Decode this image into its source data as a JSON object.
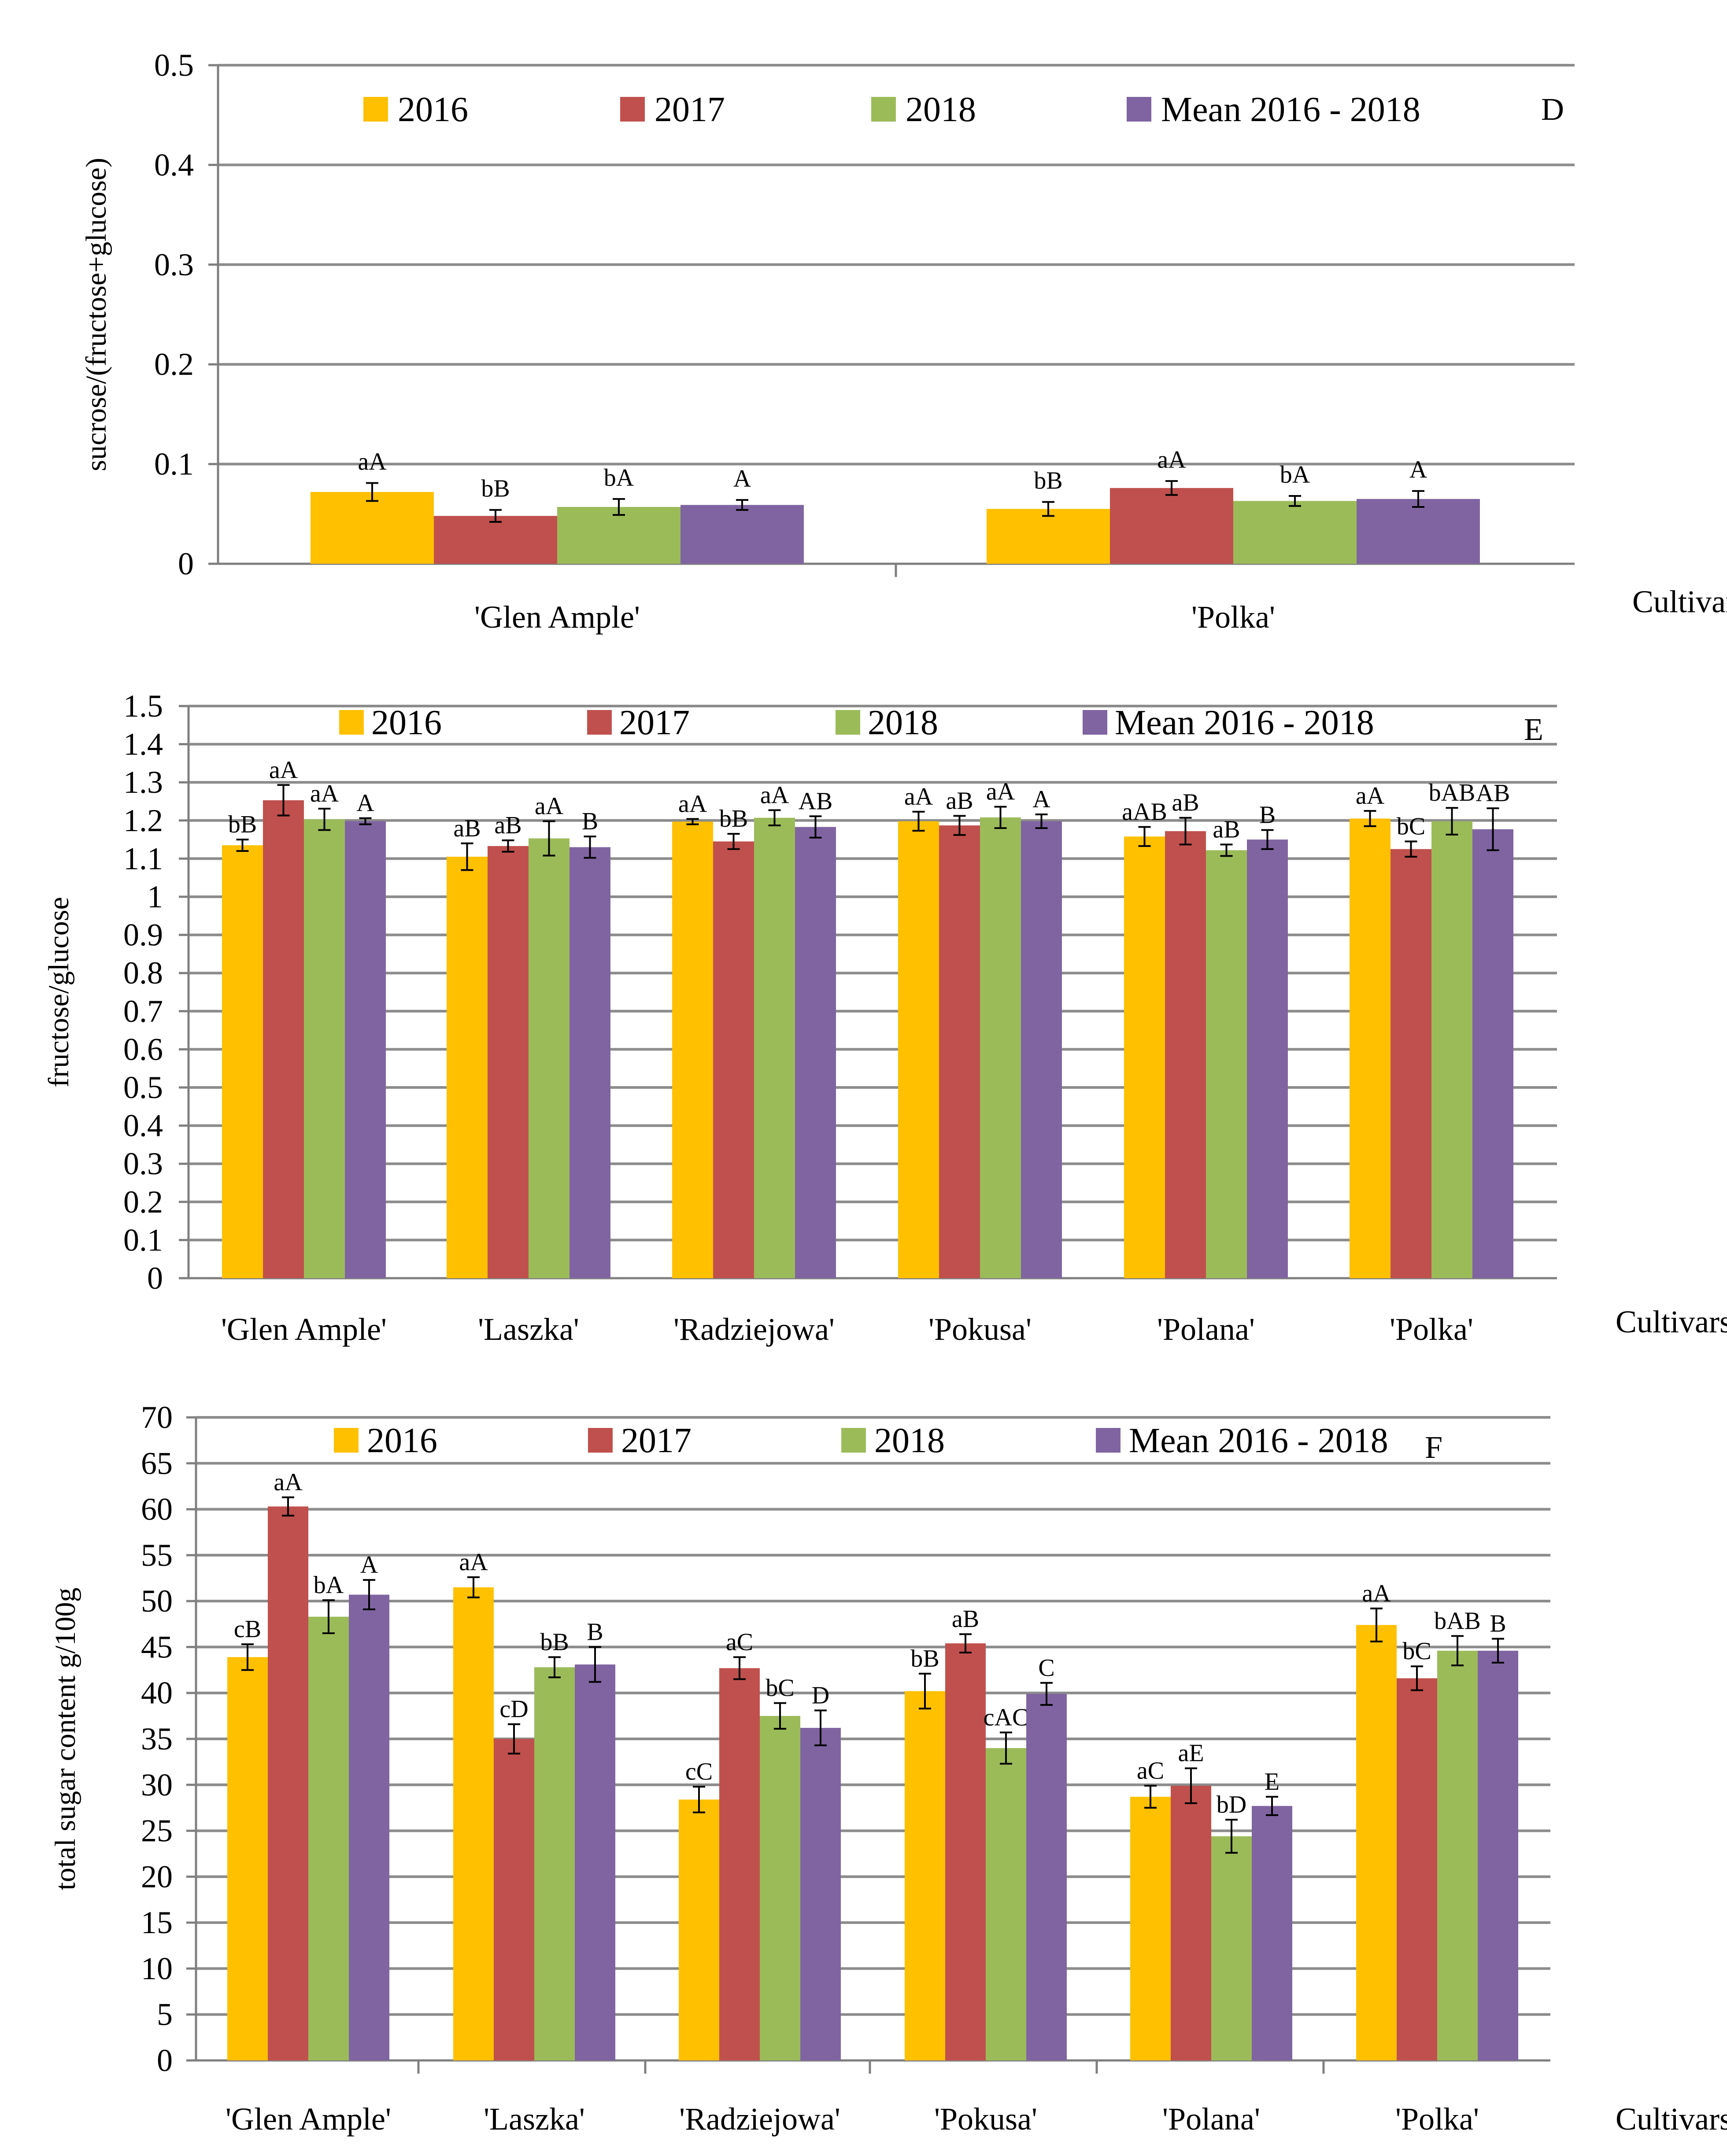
{
  "colors": {
    "2016": "#FFC000",
    "2017": "#C0504D",
    "2018": "#9BBB59",
    "Mean 2016 - 2018": "#8064A2"
  },
  "chart_data": [
    {
      "type": "bar",
      "panel": "D",
      "title": "",
      "xlabel": "Cultivars",
      "ylabel": "sucrose/(fructose+glucose)",
      "ylim": [
        0,
        0.5
      ],
      "yticks": [
        "0",
        "0.1",
        "0.2",
        "0.3",
        "0.4",
        "0.5"
      ],
      "grid": true,
      "legend_position": "top",
      "categories": [
        "'Glen Ample'",
        "'Polka'"
      ],
      "series": [
        {
          "name": "2016",
          "values": [
            0.072,
            0.055
          ],
          "errors": [
            0.009,
            0.007
          ],
          "labels": [
            "aA",
            "bB"
          ]
        },
        {
          "name": "2017",
          "values": [
            0.048,
            0.076
          ],
          "errors": [
            0.006,
            0.007
          ],
          "labels": [
            "bB",
            "aA"
          ]
        },
        {
          "name": "2018",
          "values": [
            0.057,
            0.063
          ],
          "errors": [
            0.008,
            0.005
          ],
          "labels": [
            "bA",
            "bA"
          ]
        },
        {
          "name": "Mean 2016 - 2018",
          "values": [
            0.059,
            0.065
          ],
          "errors": [
            0.005,
            0.008
          ],
          "labels": [
            "A",
            "A"
          ]
        }
      ]
    },
    {
      "type": "bar",
      "panel": "E",
      "title": "",
      "xlabel": "Cultivars",
      "ylabel": "fructose/glucose",
      "ylim": [
        0,
        1.5
      ],
      "yticks": [
        "0",
        "0.1",
        "0.2",
        "0.3",
        "0.4",
        "0.5",
        "0.6",
        "0.7",
        "0.8",
        "0.9",
        "1",
        "1.1",
        "1.2",
        "1.3",
        "1.4",
        "1.5"
      ],
      "grid": true,
      "legend_position": "top",
      "categories": [
        "'Glen Ample'",
        "'Laszka'",
        "'Radziejowa'",
        "'Pokusa'",
        "'Polana'",
        "'Polka'"
      ],
      "series": [
        {
          "name": "2016",
          "values": [
            1.135,
            1.105,
            1.197,
            1.198,
            1.158,
            1.205
          ],
          "errors": [
            0.015,
            0.035,
            0.007,
            0.025,
            0.025,
            0.02
          ],
          "labels": [
            "bB",
            "aB",
            "aA",
            "aA",
            "aAB",
            "aA"
          ]
        },
        {
          "name": "2017",
          "values": [
            1.253,
            1.133,
            1.145,
            1.187,
            1.172,
            1.125
          ],
          "errors": [
            0.04,
            0.015,
            0.02,
            0.025,
            0.035,
            0.02
          ],
          "labels": [
            "aA",
            "aB",
            "bB",
            "aB",
            "aB",
            "bC"
          ]
        },
        {
          "name": "2018",
          "values": [
            1.203,
            1.153,
            1.207,
            1.208,
            1.122,
            1.198
          ],
          "errors": [
            0.028,
            0.045,
            0.02,
            0.028,
            0.015,
            0.035
          ],
          "labels": [
            "aA",
            "aA",
            "aA",
            "aA",
            "aB",
            "bAB"
          ]
        },
        {
          "name": "Mean 2016 - 2018",
          "values": [
            1.198,
            1.13,
            1.183,
            1.198,
            1.15,
            1.177
          ],
          "errors": [
            0.008,
            0.028,
            0.028,
            0.018,
            0.025,
            0.055
          ],
          "labels": [
            "A",
            "B",
            "AB",
            "A",
            "B",
            "AB"
          ]
        }
      ]
    },
    {
      "type": "bar",
      "panel": "F",
      "title": "",
      "xlabel": "Cultivars",
      "ylabel": "total sugar content g/100g",
      "ylim": [
        0,
        70
      ],
      "yticks": [
        "0",
        "5",
        "10",
        "15",
        "20",
        "25",
        "30",
        "35",
        "40",
        "45",
        "50",
        "55",
        "60",
        "65",
        "70"
      ],
      "grid": true,
      "legend_position": "top",
      "categories": [
        "'Glen Ample'",
        "'Laszka'",
        "'Radziejowa'",
        "'Pokusa'",
        "'Polana'",
        "'Polka'"
      ],
      "series": [
        {
          "name": "2016",
          "values": [
            43.9,
            51.5,
            28.4,
            40.2,
            28.7,
            47.4
          ],
          "errors": [
            1.4,
            1.1,
            1.4,
            1.9,
            1.2,
            1.8
          ],
          "labels": [
            "cB",
            "aA",
            "cC",
            "bB",
            "aC",
            "aA"
          ]
        },
        {
          "name": "2017",
          "values": [
            60.3,
            35.0,
            42.7,
            45.4,
            29.9,
            41.6
          ],
          "errors": [
            1.0,
            1.6,
            1.2,
            1.0,
            1.9,
            1.3
          ],
          "labels": [
            "aA",
            "cD",
            "aC",
            "aB",
            "aE",
            "bC"
          ]
        },
        {
          "name": "2018",
          "values": [
            48.3,
            42.8,
            37.5,
            34.0,
            24.4,
            44.6
          ],
          "errors": [
            1.8,
            1.1,
            1.4,
            1.7,
            1.8,
            1.6
          ],
          "labels": [
            "bA",
            "bB",
            "bC",
            "cAC",
            "bD",
            "bAB"
          ]
        },
        {
          "name": "Mean 2016 - 2018",
          "values": [
            50.7,
            43.1,
            36.2,
            39.9,
            27.7,
            44.6
          ],
          "errors": [
            1.6,
            1.9,
            1.9,
            1.2,
            1.0,
            1.3
          ],
          "labels": [
            "A",
            "B",
            "D",
            "C",
            "E",
            "B"
          ]
        }
      ]
    }
  ]
}
